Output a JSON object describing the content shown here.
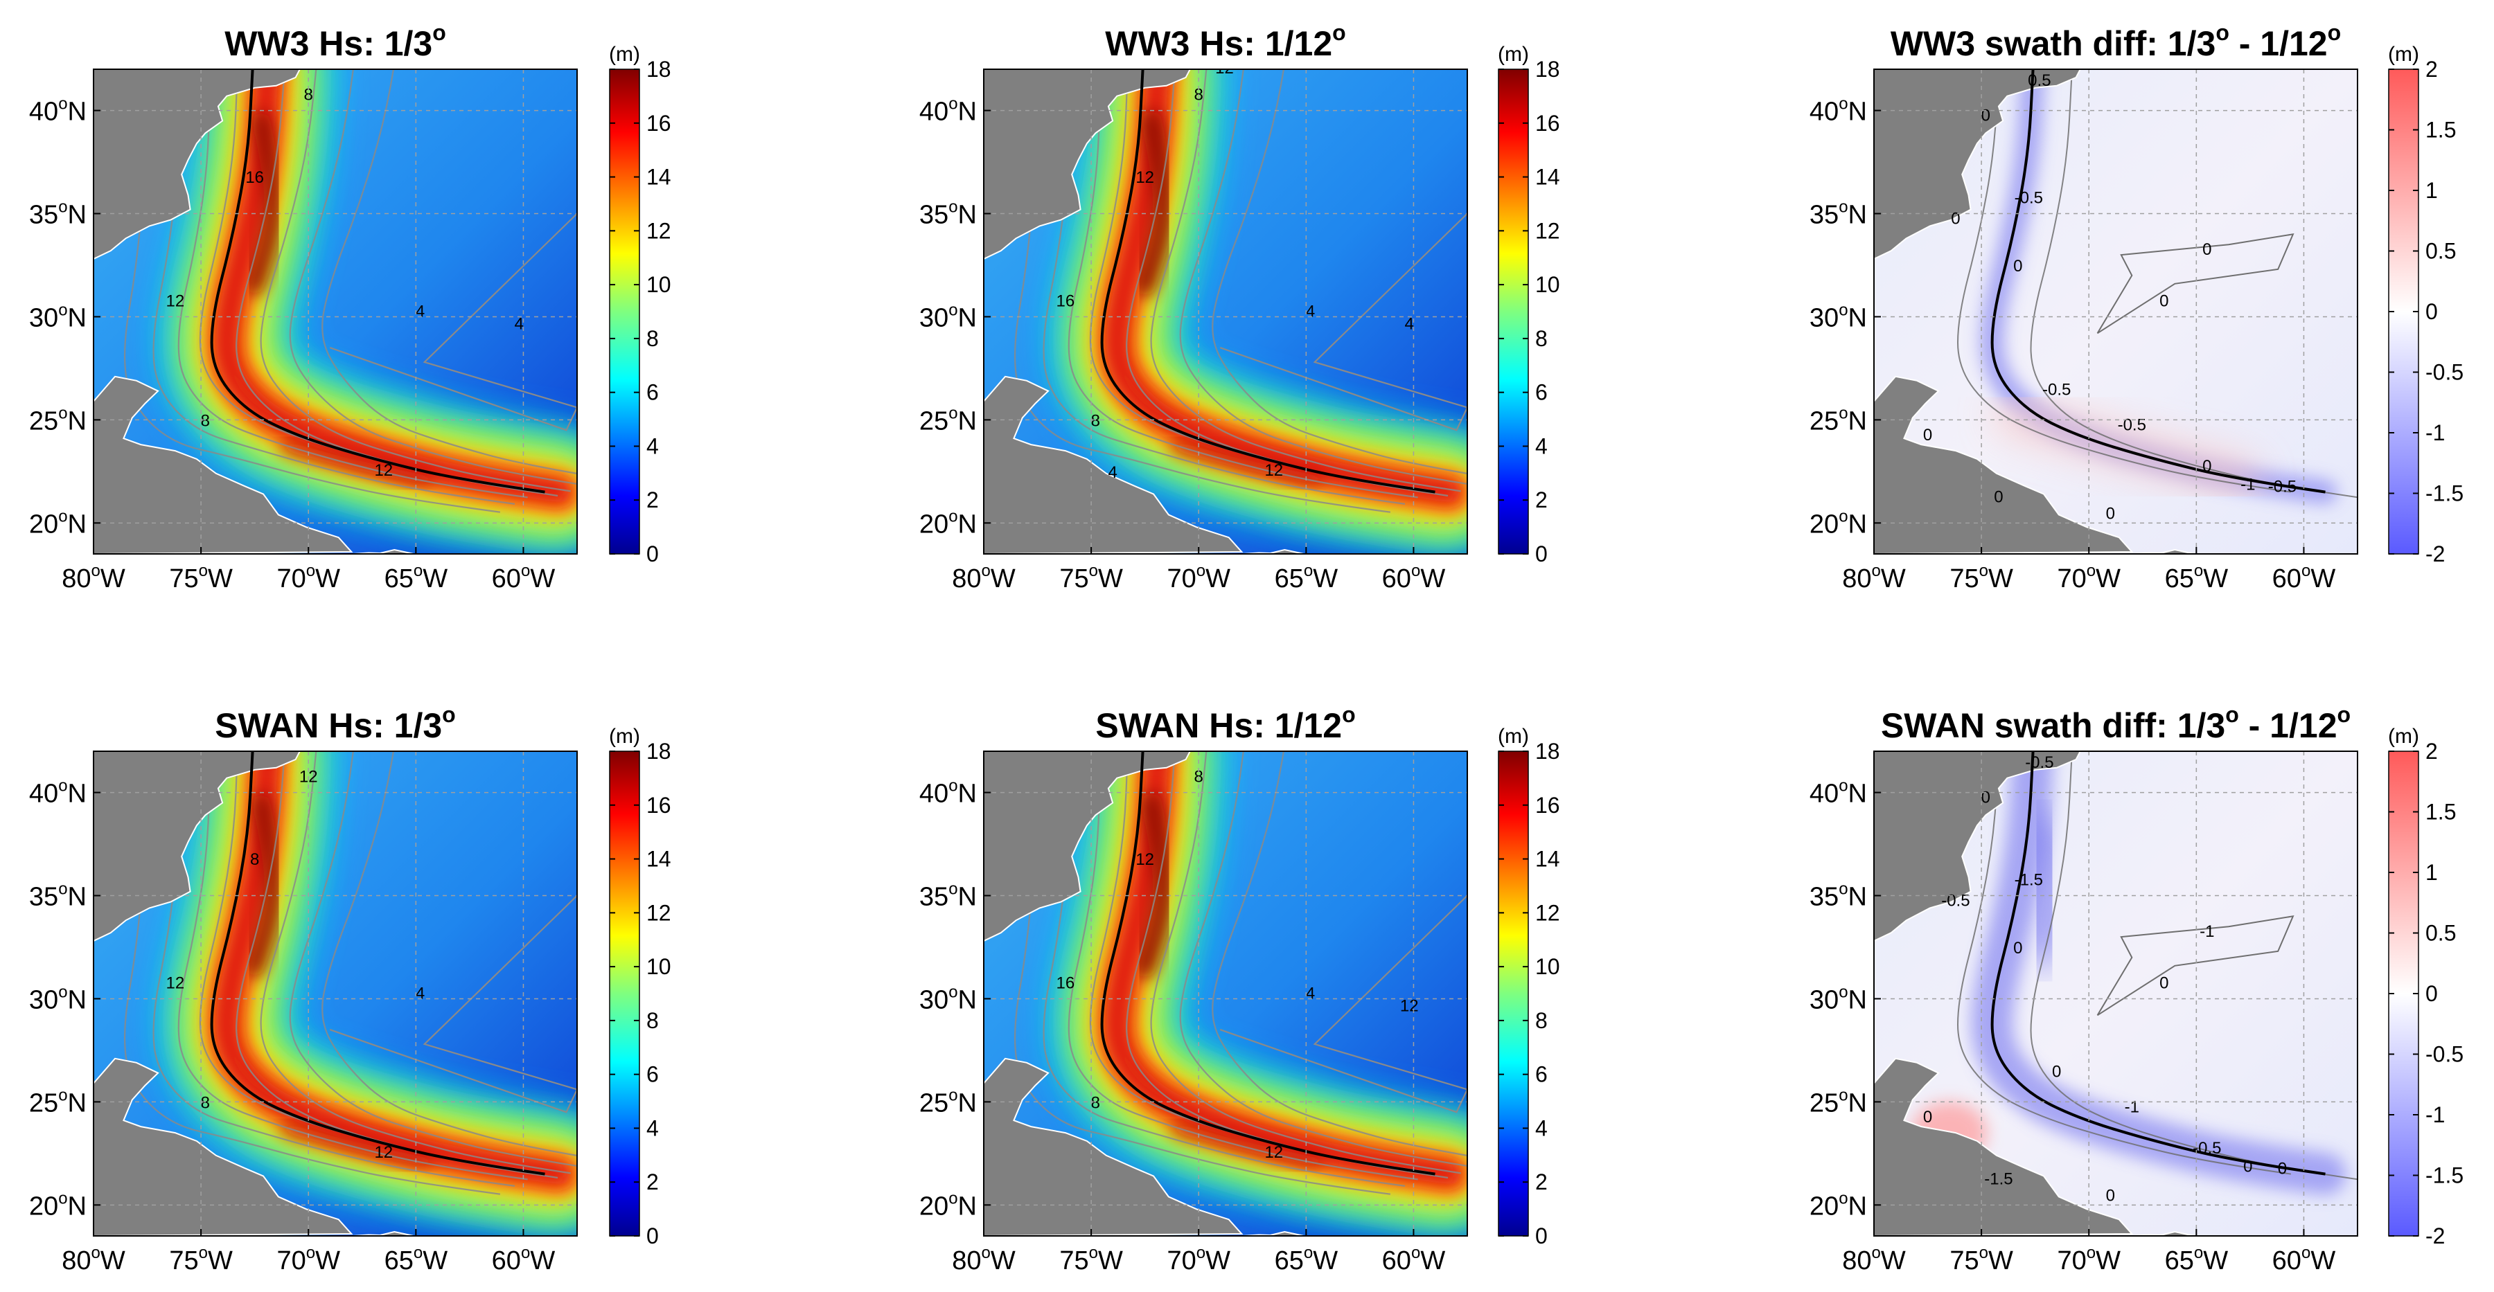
{
  "figure": {
    "panels": [
      {
        "id": "ww3-third",
        "title_main": "WW3 Hs: 1/3",
        "kind": "hs",
        "model": "WW3",
        "resolution": "1/3°"
      },
      {
        "id": "ww3-twelfth",
        "title_main": "WW3 Hs: 1/12",
        "kind": "hs",
        "model": "WW3",
        "resolution": "1/12°"
      },
      {
        "id": "ww3-diff",
        "title_main": "WW3 swath diff: 1/3",
        "title_mid": " - 1/12",
        "kind": "diff",
        "model": "WW3"
      },
      {
        "id": "swan-third",
        "title_main": "SWAN Hs: 1/3",
        "kind": "hs",
        "model": "SWAN",
        "resolution": "1/3°"
      },
      {
        "id": "swan-twelfth",
        "title_main": "SWAN Hs: 1/12",
        "kind": "hs",
        "model": "SWAN",
        "resolution": "1/12°"
      },
      {
        "id": "swan-diff",
        "title_main": "SWAN swath diff: 1/3",
        "title_mid": " - 1/12",
        "kind": "diff",
        "model": "SWAN"
      }
    ],
    "degree_symbol": "o",
    "lon_ticks": [
      {
        "deg": "80",
        "hem": "W"
      },
      {
        "deg": "75",
        "hem": "W"
      },
      {
        "deg": "70",
        "hem": "W"
      },
      {
        "deg": "65",
        "hem": "W"
      },
      {
        "deg": "60",
        "hem": "W"
      }
    ],
    "lat_ticks": [
      {
        "deg": "40",
        "hem": "N"
      },
      {
        "deg": "35",
        "hem": "N"
      },
      {
        "deg": "30",
        "hem": "N"
      },
      {
        "deg": "25",
        "hem": "N"
      },
      {
        "deg": "20",
        "hem": "N"
      }
    ],
    "colorbar_unit": "(m)",
    "hs_colorbar": {
      "ticks": [
        "18",
        "16",
        "14",
        "12",
        "10",
        "8",
        "6",
        "4",
        "2",
        "0"
      ],
      "range": [
        0,
        18
      ],
      "colormap": "jet"
    },
    "diff_colorbar": {
      "ticks": [
        "2",
        "1.5",
        "1",
        "0.5",
        "0",
        "-0.5",
        "-1",
        "-1.5",
        "-2"
      ],
      "range": [
        -2,
        2
      ],
      "colormap": "blue-white-red"
    },
    "hs_contour_labels": {
      "ww3-third": [
        "8",
        "12",
        "16",
        "12",
        "8",
        "4",
        "4"
      ],
      "ww3-twelfth": [
        "8",
        "16",
        "12",
        "12",
        "8",
        "4",
        "4",
        "12",
        "4"
      ],
      "swan-third": [
        "8",
        "12",
        "8",
        "12",
        "12",
        "4"
      ],
      "swan-twelfth": [
        "8",
        "16",
        "12",
        "12",
        "8",
        "4",
        "12"
      ]
    },
    "diff_contour_labels": {
      "ww3-diff": [
        "0",
        "0.5",
        "0",
        "0",
        "-0.5",
        "0",
        "0",
        "-0.5",
        "0",
        "0",
        "-0.5",
        "0",
        "-1",
        "-0.5",
        "0"
      ],
      "swan-diff": [
        "0",
        "-0.5",
        "-0.5",
        "0",
        "-1.5",
        "-1",
        "0",
        "0",
        "0",
        "-1.5",
        "-1",
        "-0.5",
        "0",
        "0",
        "0"
      ]
    },
    "storm_track": {
      "lon": [
        -59.0,
        -63.0,
        -67.0,
        -70.5,
        -73.0,
        -74.5,
        -74.5,
        -73.5,
        -72.8,
        -72.6
      ],
      "lat": [
        21.5,
        22.1,
        23.1,
        24.2,
        25.5,
        27.5,
        30.0,
        34.0,
        38.0,
        42.0
      ]
    },
    "colors": {
      "land": "#808080",
      "track": "#000000",
      "contour_hs": "#8a8a8a",
      "contour_diff": "#6e6e6e",
      "grid": "#a0a0a0"
    }
  },
  "chart_data": [
    {
      "type": "heatmap",
      "title": "WW3 Hs: 1/3°",
      "xlim": [
        -80,
        -57.5
      ],
      "ylim": [
        18.5,
        42
      ],
      "colorbar_range": [
        0,
        18
      ],
      "units": "m",
      "contour_levels": [
        4,
        8,
        12,
        16
      ]
    },
    {
      "type": "heatmap",
      "title": "WW3 Hs: 1/12°",
      "xlim": [
        -80,
        -57.5
      ],
      "ylim": [
        18.5,
        42
      ],
      "colorbar_range": [
        0,
        18
      ],
      "units": "m",
      "contour_levels": [
        4,
        8,
        12,
        16
      ]
    },
    {
      "type": "heatmap",
      "title": "WW3 swath diff: 1/3° - 1/12°",
      "xlim": [
        -80,
        -57.5
      ],
      "ylim": [
        18.5,
        42
      ],
      "colorbar_range": [
        -2,
        2
      ],
      "units": "m",
      "contour_levels": [
        -1.5,
        -1,
        -0.5,
        0,
        0.5
      ]
    },
    {
      "type": "heatmap",
      "title": "SWAN Hs: 1/3°",
      "xlim": [
        -80,
        -57.5
      ],
      "ylim": [
        18.5,
        42
      ],
      "colorbar_range": [
        0,
        18
      ],
      "units": "m",
      "contour_levels": [
        4,
        8,
        12,
        16
      ]
    },
    {
      "type": "heatmap",
      "title": "SWAN Hs: 1/12°",
      "xlim": [
        -80,
        -57.5
      ],
      "ylim": [
        18.5,
        42
      ],
      "colorbar_range": [
        0,
        18
      ],
      "units": "m",
      "contour_levels": [
        4,
        8,
        12,
        16
      ]
    },
    {
      "type": "heatmap",
      "title": "SWAN swath diff: 1/3° - 1/12°",
      "xlim": [
        -80,
        -57.5
      ],
      "ylim": [
        18.5,
        42
      ],
      "colorbar_range": [
        -2,
        2
      ],
      "units": "m",
      "contour_levels": [
        -1.5,
        -1,
        -0.5,
        0,
        0.5
      ]
    }
  ]
}
